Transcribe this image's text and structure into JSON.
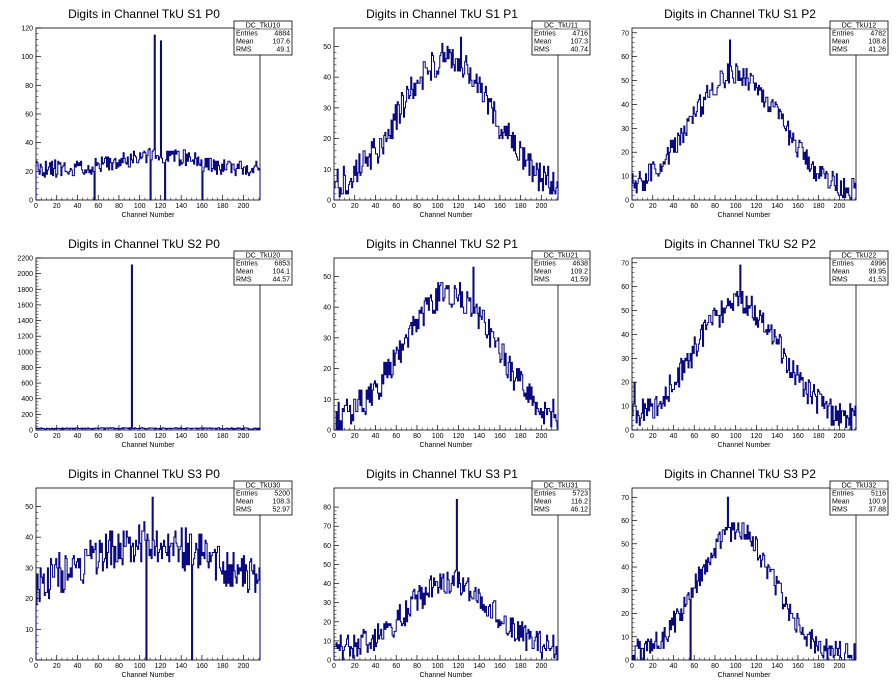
{
  "histogram_color": "#000080",
  "chart_data": [
    {
      "type": "line",
      "title": "Digits in Channel TkU S1 P0",
      "xlabel": "Channel Number",
      "ylabel": "",
      "xlim": [
        0,
        216
      ],
      "ylim": [
        0,
        120
      ],
      "yticks": [
        0,
        20,
        40,
        60,
        80,
        100,
        120
      ],
      "xticks": [
        0,
        20,
        40,
        60,
        80,
        100,
        120,
        140,
        160,
        180,
        200
      ],
      "stats": {
        "name": "DC_TkU10",
        "entries": "4884",
        "mean": "107.6",
        "rms": "49.1"
      },
      "shape": {
        "kind": "flat",
        "base": 22,
        "peak": 32,
        "noise": 6,
        "seed": 11
      },
      "spikes": [
        {
          "x": 114,
          "y": 115
        },
        {
          "x": 120,
          "y": 111
        },
        {
          "x": 110,
          "y": 0
        },
        {
          "x": 124,
          "y": 0
        },
        {
          "x": 56,
          "y": 0
        },
        {
          "x": 160,
          "y": 0
        }
      ]
    },
    {
      "type": "line",
      "title": "Digits in Channel TkU S1 P1",
      "xlabel": "Channel Number",
      "ylabel": "",
      "xlim": [
        0,
        216
      ],
      "ylim": [
        0,
        56
      ],
      "yticks": [
        0,
        10,
        20,
        30,
        40,
        50
      ],
      "xticks": [
        0,
        20,
        40,
        60,
        80,
        100,
        120,
        140,
        160,
        180,
        200
      ],
      "stats": {
        "name": "DC_TkU11",
        "entries": "4716",
        "mean": "107.3",
        "rms": "40.74"
      },
      "shape": {
        "kind": "gauss",
        "center": 108,
        "width": 45,
        "amp": 44,
        "base": 2,
        "noise": 5,
        "seed": 21
      },
      "spikes": [
        {
          "x": 122,
          "y": 53
        }
      ]
    },
    {
      "type": "line",
      "title": "Digits in Channel TkU S1 P2",
      "xlabel": "Channel Number",
      "ylabel": "",
      "xlim": [
        0,
        216
      ],
      "ylim": [
        0,
        72
      ],
      "yticks": [
        0,
        10,
        20,
        30,
        40,
        50,
        60,
        70
      ],
      "xticks": [
        0,
        20,
        40,
        60,
        80,
        100,
        120,
        140,
        160,
        180,
        200
      ],
      "stats": {
        "name": "DC_TkU12",
        "entries": "4782",
        "mean": "108.8",
        "rms": "41.26"
      },
      "shape": {
        "kind": "gauss",
        "center": 100,
        "width": 43,
        "amp": 50,
        "base": 3,
        "noise": 5,
        "seed": 31
      },
      "spikes": [
        {
          "x": 94,
          "y": 67
        }
      ]
    },
    {
      "type": "line",
      "title": "Digits in Channel TkU S2 P0",
      "xlabel": "Channel Number",
      "ylabel": "",
      "xlim": [
        0,
        216
      ],
      "ylim": [
        0,
        2200
      ],
      "yticks": [
        0,
        200,
        400,
        600,
        800,
        1000,
        1200,
        1400,
        1600,
        1800,
        2000,
        2200
      ],
      "xticks": [
        0,
        20,
        40,
        60,
        80,
        100,
        120,
        140,
        160,
        180,
        200
      ],
      "stats": {
        "name": "DC_TkU20",
        "entries": "6853",
        "mean": "104.1",
        "rms": "44.57"
      },
      "shape": {
        "kind": "flat",
        "base": 20,
        "peak": 22,
        "noise": 8,
        "seed": 41
      },
      "spikes": [
        {
          "x": 92,
          "y": 2110
        }
      ]
    },
    {
      "type": "line",
      "title": "Digits in Channel TkU S2 P1",
      "xlabel": "Channel Number",
      "ylabel": "",
      "xlim": [
        0,
        216
      ],
      "ylim": [
        0,
        56
      ],
      "yticks": [
        0,
        10,
        20,
        30,
        40,
        50
      ],
      "xticks": [
        0,
        20,
        40,
        60,
        80,
        100,
        120,
        140,
        160,
        180,
        200
      ],
      "stats": {
        "name": "DC_TkU21",
        "entries": "4638",
        "mean": "109.2",
        "rms": "41.59"
      },
      "shape": {
        "kind": "gauss",
        "center": 112,
        "width": 44,
        "amp": 42,
        "base": 2,
        "noise": 5,
        "seed": 51
      },
      "spikes": [
        {
          "x": 134,
          "y": 53
        }
      ]
    },
    {
      "type": "line",
      "title": "Digits in Channel TkU S2 P2",
      "xlabel": "Channel Number",
      "ylabel": "",
      "xlim": [
        0,
        216
      ],
      "ylim": [
        0,
        72
      ],
      "yticks": [
        0,
        10,
        20,
        30,
        40,
        50,
        60,
        70
      ],
      "xticks": [
        0,
        20,
        40,
        60,
        80,
        100,
        120,
        140,
        160,
        180,
        200
      ],
      "stats": {
        "name": "DC_TkU22",
        "entries": "4996",
        "mean": "99.95",
        "rms": "41.53"
      },
      "shape": {
        "kind": "gauss",
        "center": 102,
        "width": 42,
        "amp": 50,
        "base": 3,
        "noise": 6,
        "seed": 61
      },
      "spikes": [
        {
          "x": 104,
          "y": 69
        },
        {
          "x": 2,
          "y": 20
        }
      ]
    },
    {
      "type": "line",
      "title": "Digits in Channel TkU S3 P0",
      "xlabel": "Channel Number",
      "ylabel": "",
      "xlim": [
        0,
        216
      ],
      "ylim": [
        0,
        56
      ],
      "yticks": [
        0,
        10,
        20,
        30,
        40,
        50
      ],
      "xticks": [
        0,
        20,
        40,
        60,
        80,
        100,
        120,
        140,
        160,
        180,
        200
      ],
      "stats": {
        "name": "DC_TkU30",
        "entries": "5200",
        "mean": "108.3",
        "rms": "52.97"
      },
      "shape": {
        "kind": "gauss",
        "center": 112,
        "width": 80,
        "amp": 22,
        "base": 16,
        "noise": 7,
        "seed": 71
      },
      "spikes": [
        {
          "x": 106,
          "y": 0
        },
        {
          "x": 150,
          "y": 0
        },
        {
          "x": 112,
          "y": 53
        }
      ]
    },
    {
      "type": "line",
      "title": "Digits in Channel TkU S3 P1",
      "xlabel": "Channel Number",
      "ylabel": "",
      "xlim": [
        0,
        216
      ],
      "ylim": [
        0,
        90
      ],
      "yticks": [
        0,
        10,
        20,
        30,
        40,
        50,
        60,
        70,
        80
      ],
      "xticks": [
        0,
        20,
        40,
        60,
        80,
        100,
        120,
        140,
        160,
        180,
        200
      ],
      "stats": {
        "name": "DC_TkU31",
        "entries": "5723",
        "mean": "116.2",
        "rms": "46.12"
      },
      "shape": {
        "kind": "gauss",
        "center": 112,
        "width": 40,
        "amp": 36,
        "base": 5,
        "noise": 7,
        "seed": 81
      },
      "spikes": [
        {
          "x": 118,
          "y": 84
        }
      ]
    },
    {
      "type": "line",
      "title": "Digits in Channel TkU S3 P2",
      "xlabel": "Channel Number",
      "ylabel": "",
      "xlim": [
        0,
        216
      ],
      "ylim": [
        0,
        74
      ],
      "yticks": [
        0,
        10,
        20,
        30,
        40,
        50,
        60,
        70
      ],
      "xticks": [
        0,
        20,
        40,
        60,
        80,
        100,
        120,
        140,
        160,
        180,
        200
      ],
      "stats": {
        "name": "DC_TkU32",
        "entries": "5116",
        "mean": "100.9",
        "rms": "37.88"
      },
      "shape": {
        "kind": "gauss",
        "center": 100,
        "width": 36,
        "amp": 54,
        "base": 2,
        "noise": 5,
        "seed": 91
      },
      "spikes": [
        {
          "x": 92,
          "y": 70
        },
        {
          "x": 56,
          "y": 0
        }
      ]
    }
  ]
}
